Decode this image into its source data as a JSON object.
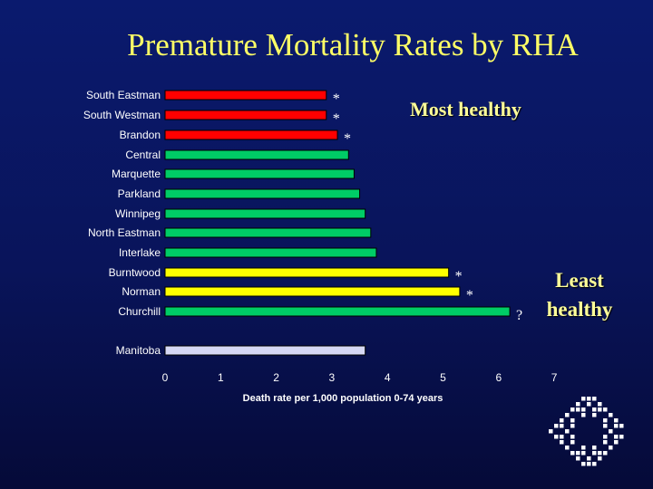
{
  "title": "Premature Mortality Rates by RHA",
  "notes": {
    "most_healthy": "Most healthy",
    "least_healthy_1": "Least",
    "least_healthy_2": "healthy"
  },
  "colors": {
    "red": "#ff0000",
    "green": "#00cc66",
    "yellow": "#ffff00",
    "lavender": "#d6d8f5",
    "label": "#ffffff",
    "marker": "#ffffff"
  },
  "chart_data": {
    "type": "bar",
    "orientation": "horizontal",
    "title": "Premature Mortality Rates by RHA",
    "xlabel": "Death rate per 1,000 population 0-74 years",
    "ylabel": "",
    "xlim": [
      0,
      7
    ],
    "xticks": [
      "0",
      "1",
      "2",
      "3",
      "4",
      "5",
      "6",
      "7"
    ],
    "grid": false,
    "categories": [
      "South Eastman",
      "South Westman",
      "Brandon",
      "Central",
      "Marquette",
      "Parkland",
      "Winnipeg",
      "North Eastman",
      "Interlake",
      "Burntwood",
      "Norman",
      "Churchill",
      "Manitoba"
    ],
    "values": [
      2.9,
      2.9,
      3.1,
      3.3,
      3.4,
      3.5,
      3.6,
      3.7,
      3.8,
      5.1,
      5.3,
      6.2,
      3.6
    ],
    "bar_colors": [
      "red",
      "red",
      "red",
      "green",
      "green",
      "green",
      "green",
      "green",
      "green",
      "yellow",
      "yellow",
      "green",
      "lavender"
    ],
    "markers": [
      "*",
      "*",
      "*",
      "",
      "",
      "",
      "",
      "",
      "",
      "*",
      "*",
      "?",
      ""
    ]
  }
}
